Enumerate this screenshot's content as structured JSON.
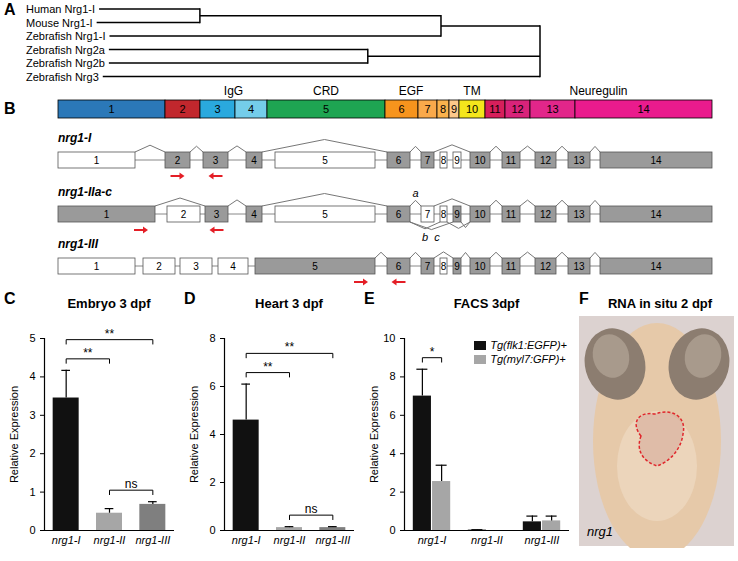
{
  "dendrogram": {
    "letter": "A",
    "tree": [
      [
        [
          "Human Nrg1-I",
          "Mouse Nrg1-I"
        ],
        "Zebrafish Nrg1-I"
      ],
      [
        "Zebrafish Nrg2a",
        "Zebrafish Nrg2b"
      ],
      "Zebrafish Nrg3"
    ]
  },
  "gene_structure": {
    "letter": "B",
    "domains": [
      {
        "label": "1",
        "color": "#2b78b8"
      },
      {
        "label": "2",
        "color": "#c1272d"
      },
      {
        "label": "3",
        "color": "#2aa9de"
      },
      {
        "label": "4",
        "color": "#74cdea"
      },
      {
        "label": "5",
        "color": "#1ea552"
      },
      {
        "label": "6",
        "color": "#f7941d"
      },
      {
        "label": "7",
        "color": "#f9a94b"
      },
      {
        "label": "8",
        "color": "#fbb24c"
      },
      {
        "label": "9",
        "color": "#fcc88a"
      },
      {
        "label": "10",
        "color": "#f4e61c"
      },
      {
        "label": "11",
        "color": "#d71f5b"
      },
      {
        "label": "12",
        "color": "#d9237a"
      },
      {
        "label": "13",
        "color": "#e2268a"
      },
      {
        "label": "14",
        "color": "#ea1b8d"
      }
    ],
    "domain_groups": [
      {
        "label": "IgG",
        "from": "3",
        "to": "4"
      },
      {
        "label": "CRD",
        "from": "5",
        "to": "5"
      },
      {
        "label": "EGF",
        "from": "6",
        "to": "7"
      },
      {
        "label": "TM",
        "from": "10",
        "to": "10"
      },
      {
        "label": "Neuregulin",
        "from": "11",
        "to": "14"
      }
    ],
    "transcripts": [
      {
        "name": "nrg1-I",
        "filled": [
          false,
          true,
          true,
          true,
          false,
          true,
          true,
          false,
          false,
          true,
          true,
          true,
          true,
          true
        ],
        "splices": [
          {
            "from": "1",
            "to": "2"
          },
          {
            "from": "2",
            "to": "3"
          },
          {
            "from": "3",
            "to": "4"
          },
          {
            "from": "4",
            "to": "6"
          },
          {
            "from": "6",
            "to": "7"
          },
          {
            "from": "7",
            "to": "10"
          },
          {
            "from": "10",
            "to": "11"
          },
          {
            "from": "11",
            "to": "12"
          },
          {
            "from": "12",
            "to": "13"
          },
          {
            "from": "13",
            "to": "14"
          }
        ],
        "primers": [
          {
            "exon": "2",
            "direction": "forward"
          },
          {
            "exon": "3",
            "direction": "reverse"
          }
        ]
      },
      {
        "name": "nrg1-IIa-c",
        "filled": [
          true,
          false,
          true,
          true,
          false,
          true,
          false,
          false,
          true,
          true,
          true,
          true,
          true,
          true
        ],
        "splices": [
          {
            "from": "1",
            "to": "3"
          },
          {
            "from": "3",
            "to": "4"
          },
          {
            "from": "4",
            "to": "6"
          },
          {
            "from": "6",
            "to": "7",
            "label": "a"
          },
          {
            "from": "7",
            "to": "10"
          },
          {
            "from": "6",
            "to": "8",
            "side": "below",
            "label": "b"
          },
          {
            "from": "6",
            "to": "9",
            "side": "below",
            "label": "c"
          },
          {
            "from": "8",
            "to": "10",
            "side": "below"
          },
          {
            "from": "9",
            "to": "10",
            "side": "below"
          },
          {
            "from": "10",
            "to": "11"
          },
          {
            "from": "11",
            "to": "12"
          },
          {
            "from": "12",
            "to": "13"
          },
          {
            "from": "13",
            "to": "14"
          }
        ],
        "primers": [
          {
            "exon": "1",
            "direction": "forward"
          },
          {
            "exon": "3",
            "direction": "reverse"
          }
        ]
      },
      {
        "name": "nrg1-III",
        "filled": [
          false,
          false,
          false,
          false,
          true,
          true,
          true,
          false,
          true,
          true,
          true,
          true,
          true,
          true
        ],
        "splices": [
          {
            "from": "5",
            "to": "6"
          },
          {
            "from": "6",
            "to": "7"
          },
          {
            "from": "7",
            "to": "9"
          },
          {
            "from": "9",
            "to": "10"
          },
          {
            "from": "10",
            "to": "11"
          },
          {
            "from": "11",
            "to": "12"
          },
          {
            "from": "12",
            "to": "13"
          },
          {
            "from": "13",
            "to": "14"
          }
        ],
        "primers": [
          {
            "exon": "5",
            "direction": "forward"
          },
          {
            "exon": "6",
            "direction": "reverse"
          }
        ]
      }
    ]
  },
  "chart_data": [
    {
      "letter": "C",
      "type": "bar",
      "title": "Embryo 3 dpf",
      "y_label": "Relative Expression",
      "categories": [
        "nrg1-I",
        "nrg1-II",
        "nrg1-III"
      ],
      "values": [
        3.45,
        0.45,
        0.68
      ],
      "errors": [
        0.72,
        0.12,
        0.07
      ],
      "colors": [
        "#111111",
        "#a6a6a6",
        "#7f7f7f"
      ],
      "ylim": [
        0,
        5
      ],
      "yticks": [
        0,
        1,
        2,
        3,
        4,
        5
      ],
      "significance": [
        {
          "from": "nrg1-I",
          "to": "nrg1-II",
          "label": "**"
        },
        {
          "from": "nrg1-I",
          "to": "nrg1-III",
          "label": "**"
        },
        {
          "from": "nrg1-II",
          "to": "nrg1-III",
          "label": "ns"
        }
      ]
    },
    {
      "letter": "D",
      "type": "bar",
      "title": "Heart 3 dpf",
      "y_label": "Relative Expression",
      "categories": [
        "nrg1-I",
        "nrg1-II",
        "nrg1-III"
      ],
      "values": [
        4.6,
        0.12,
        0.12
      ],
      "errors": [
        1.5,
        0.04,
        0.04
      ],
      "colors": [
        "#111111",
        "#a6a6a6",
        "#7f7f7f"
      ],
      "ylim": [
        0,
        8
      ],
      "yticks": [
        0,
        2,
        4,
        6,
        8
      ],
      "significance": [
        {
          "from": "nrg1-I",
          "to": "nrg1-II",
          "label": "**"
        },
        {
          "from": "nrg1-I",
          "to": "nrg1-III",
          "label": "**"
        },
        {
          "from": "nrg1-II",
          "to": "nrg1-III",
          "label": "ns"
        }
      ]
    },
    {
      "letter": "E",
      "type": "bar",
      "title": "FACS 3dpf",
      "y_label": "Relative Expression",
      "categories": [
        "nrg1-I",
        "nrg1-II",
        "nrg1-III"
      ],
      "series": [
        {
          "name": "Tg(flk1:EGFP)+",
          "color": "#111111",
          "values": [
            7.0,
            0.02,
            0.45
          ],
          "errors": [
            1.4,
            0.02,
            0.3
          ]
        },
        {
          "name": "Tg(myl7:GFP)+",
          "color": "#a6a6a6",
          "values": [
            2.55,
            0.0,
            0.5
          ],
          "errors": [
            0.85,
            0.0,
            0.25
          ]
        }
      ],
      "legend": "top-right",
      "ylim": [
        0,
        10
      ],
      "yticks": [
        0,
        2,
        4,
        6,
        8,
        10
      ],
      "significance": [
        {
          "category": "nrg1-I",
          "from": "Tg(flk1:EGFP)+",
          "to": "Tg(myl7:GFP)+",
          "label": "*"
        }
      ]
    }
  ],
  "image": {
    "letter": "F",
    "title": "RNA in situ 2 dpf",
    "label": "nrg1"
  }
}
